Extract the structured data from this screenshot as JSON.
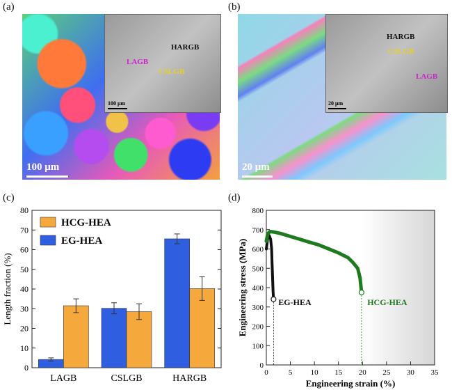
{
  "panels": {
    "a": {
      "label": "(a)",
      "scale_bar": "100 μm",
      "inset": {
        "scale_bar": "100 μm",
        "labels": [
          "HARGB",
          "LAGB",
          "CSLGB"
        ]
      }
    },
    "b": {
      "label": "(b)",
      "scale_bar": "20 μm",
      "inset": {
        "scale_bar": "20 μm",
        "labels": [
          "HARGB",
          "CSLGB",
          "LAGB"
        ]
      }
    },
    "c": {
      "label": "(c)"
    },
    "d": {
      "label": "(d)"
    }
  },
  "colors": {
    "hcg": "#f5a83c",
    "eg": "#2f5fe0",
    "curve_hcg": "#1e7a1e",
    "label_lagb": "#d020d0",
    "label_cslgb": "#e8d020",
    "label_hargb": "#000000"
  },
  "chart_data": [
    {
      "type": "bar",
      "title": "",
      "xlabel": "",
      "ylabel": "Length fraction (%)",
      "ylim": [
        0,
        80
      ],
      "yticks": [
        0,
        10,
        20,
        30,
        40,
        50,
        60,
        70,
        80
      ],
      "categories": [
        "LAGB",
        "CSLGB",
        "HARGB"
      ],
      "series": [
        {
          "name": "EG-HEA",
          "values": [
            4.2,
            30.2,
            65.5
          ],
          "errors": [
            0.8,
            2.8,
            2.5
          ]
        },
        {
          "name": "HCG-HEA",
          "values": [
            31.5,
            28.5,
            40.2
          ],
          "errors": [
            3.5,
            4.0,
            6.0
          ]
        }
      ],
      "legend": {
        "placement": "top-left",
        "order": [
          "HCG-HEA",
          "EG-HEA"
        ]
      }
    },
    {
      "type": "line",
      "title": "",
      "xlabel": "Engineering strain (%)",
      "ylabel": "Engineering stress (MPa)",
      "xlim": [
        0,
        35
      ],
      "ylim": [
        0,
        800
      ],
      "xticks": [
        0,
        5,
        10,
        15,
        20,
        25,
        30,
        35
      ],
      "yticks": [
        0,
        100,
        200,
        300,
        400,
        500,
        600,
        700,
        800
      ],
      "series": [
        {
          "name": "EG-HEA",
          "x": [
            0,
            0.3,
            0.6,
            0.9,
            1.1,
            1.2,
            1.3,
            1.4,
            1.5
          ],
          "y": [
            600,
            660,
            670,
            650,
            600,
            520,
            450,
            380,
            340
          ]
        },
        {
          "name": "HCG-HEA",
          "x": [
            0,
            0.3,
            0.8,
            1.5,
            3,
            5,
            7,
            9,
            11,
            13,
            15,
            17,
            18,
            19,
            19.5,
            19.8
          ],
          "y": [
            640,
            680,
            690,
            688,
            680,
            665,
            650,
            635,
            620,
            600,
            580,
            555,
            530,
            500,
            450,
            375
          ]
        }
      ],
      "annotations": [
        "EG-HEA",
        "HCG-HEA"
      ]
    }
  ]
}
